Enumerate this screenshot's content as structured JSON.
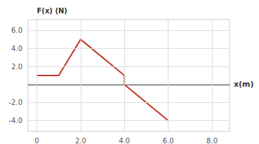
{
  "chart_data": {
    "type": "line",
    "x": [
      0,
      1.0,
      2.0,
      4.0,
      4.0,
      6.0
    ],
    "values": [
      1.0,
      1.0,
      5.0,
      1.0,
      0.0,
      -4.0
    ],
    "color": "#c0392b",
    "xlabel": "x(m)",
    "ylabel": "F(x) (N)",
    "xlim": [
      -0.4,
      8.8
    ],
    "ylim": [
      -5.2,
      7.2
    ],
    "xticks": [
      0,
      {
        "value": 2,
        "label": "2.0"
      },
      {
        "value": 4,
        "label": "4.0"
      },
      {
        "value": 6,
        "label": "6.0"
      },
      {
        "value": 8,
        "label": "8.0"
      }
    ],
    "yticks": [
      {
        "value": -4,
        "label": "-4.0"
      },
      {
        "value": -2,
        "label": "-2.0"
      },
      {
        "value": 2,
        "label": "2.0"
      },
      {
        "value": 4,
        "label": "4.0"
      },
      {
        "value": 6,
        "label": "6.0"
      }
    ],
    "grid": true
  }
}
